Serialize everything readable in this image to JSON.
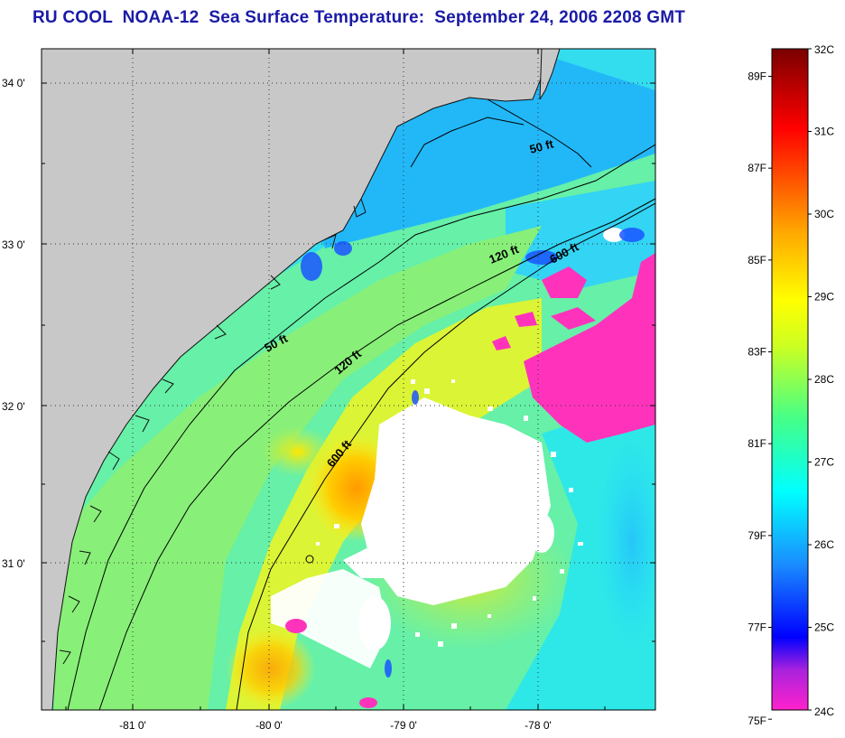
{
  "title": "RU COOL  NOAA-12  Sea Surface Temperature:  September 24, 2006 2208 GMT",
  "map": {
    "lat_labels": [
      "34 0'",
      "33 0'",
      "32 0'",
      "31 0'"
    ],
    "lon_labels": [
      "-81 0'",
      "-80 0'",
      "-79 0'",
      "-78 0'"
    ],
    "contours": [
      {
        "label": "50 ft"
      },
      {
        "label": "50 ft"
      },
      {
        "label": "120 ft"
      },
      {
        "label": "120 ft"
      },
      {
        "label": "600 ft"
      },
      {
        "label": "600 ft"
      }
    ],
    "land_color": "#c8c8c8",
    "cloud_color": "#ffffff"
  },
  "colorbar": {
    "celsius_labels": [
      "32C",
      "31C",
      "30C",
      "29C",
      "28C",
      "27C",
      "26C",
      "25C",
      "24C"
    ],
    "fahrenheit_labels": [
      "89F",
      "87F",
      "85F",
      "83F",
      "81F",
      "79F",
      "77F",
      "75F"
    ],
    "colors": [
      "#ff22cc",
      "#8822ee",
      "#0000ff",
      "#1a8cff",
      "#00ffff",
      "#44ff88",
      "#ffff00",
      "#ffaa00",
      "#ff5500",
      "#ff0000",
      "#cc0000",
      "#7a0000"
    ]
  }
}
